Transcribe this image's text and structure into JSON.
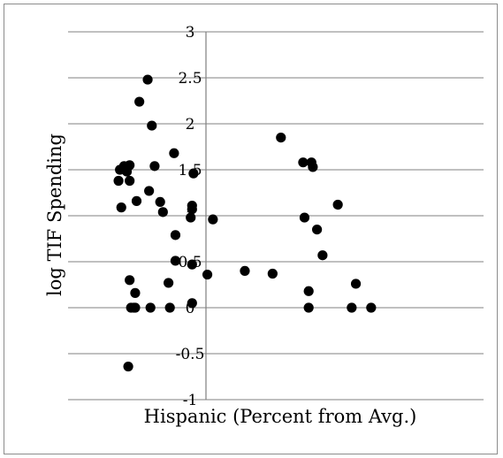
{
  "chart_data": {
    "type": "scatter",
    "xlabel": "Hispanic (Percent from Avg.)",
    "ylabel": "log TIF Spending",
    "ylim": [
      -1,
      3
    ],
    "xlim": [
      -1,
      2
    ],
    "grid": true,
    "y_ticks": [
      "3",
      "2.5",
      "2",
      "1.5",
      "1",
      "0.5",
      "0",
      "-0.5",
      "-1"
    ],
    "y_tick_values": [
      3,
      2.5,
      2,
      1.5,
      1,
      0.5,
      0,
      -0.5,
      -1
    ],
    "colors": {
      "marker": "#000000",
      "grid": "#808080",
      "axis": "#808080"
    },
    "points": [
      [
        -0.42,
        2.48
      ],
      [
        -0.48,
        2.24
      ],
      [
        -0.39,
        1.98
      ],
      [
        -0.59,
        1.54
      ],
      [
        -0.55,
        1.55
      ],
      [
        -0.62,
        1.5
      ],
      [
        -0.57,
        1.48
      ],
      [
        -0.63,
        1.38
      ],
      [
        -0.55,
        1.38
      ],
      [
        -0.5,
        1.16
      ],
      [
        -0.41,
        1.27
      ],
      [
        -0.37,
        1.54
      ],
      [
        -0.33,
        1.15
      ],
      [
        -0.31,
        1.04
      ],
      [
        -0.61,
        1.09
      ],
      [
        -0.23,
        1.68
      ],
      [
        -0.09,
        1.46
      ],
      [
        -0.11,
        0.98
      ],
      [
        -0.1,
        1.07
      ],
      [
        -0.1,
        1.11
      ],
      [
        0.05,
        0.96
      ],
      [
        -0.22,
        0.79
      ],
      [
        -0.22,
        0.51
      ],
      [
        -0.1,
        0.47
      ],
      [
        0.01,
        0.36
      ],
      [
        0.28,
        0.4
      ],
      [
        0.48,
        0.37
      ],
      [
        -0.27,
        0.27
      ],
      [
        -0.1,
        0.05
      ],
      [
        -0.26,
        0.0
      ],
      [
        -0.4,
        0.0
      ],
      [
        -0.51,
        0.0
      ],
      [
        -0.54,
        0.0
      ],
      [
        -0.51,
        0.16
      ],
      [
        -0.55,
        0.3
      ],
      [
        -0.52,
        0.0
      ],
      [
        -0.56,
        -0.64
      ],
      [
        0.54,
        1.85
      ],
      [
        0.7,
        1.58
      ],
      [
        0.76,
        1.58
      ],
      [
        0.77,
        1.53
      ],
      [
        0.71,
        0.98
      ],
      [
        0.8,
        0.85
      ],
      [
        0.84,
        0.57
      ],
      [
        0.95,
        1.12
      ],
      [
        1.08,
        0.26
      ],
      [
        0.74,
        0.18
      ],
      [
        0.74,
        0.0
      ],
      [
        1.05,
        0.0
      ],
      [
        1.19,
        0.0
      ]
    ]
  }
}
